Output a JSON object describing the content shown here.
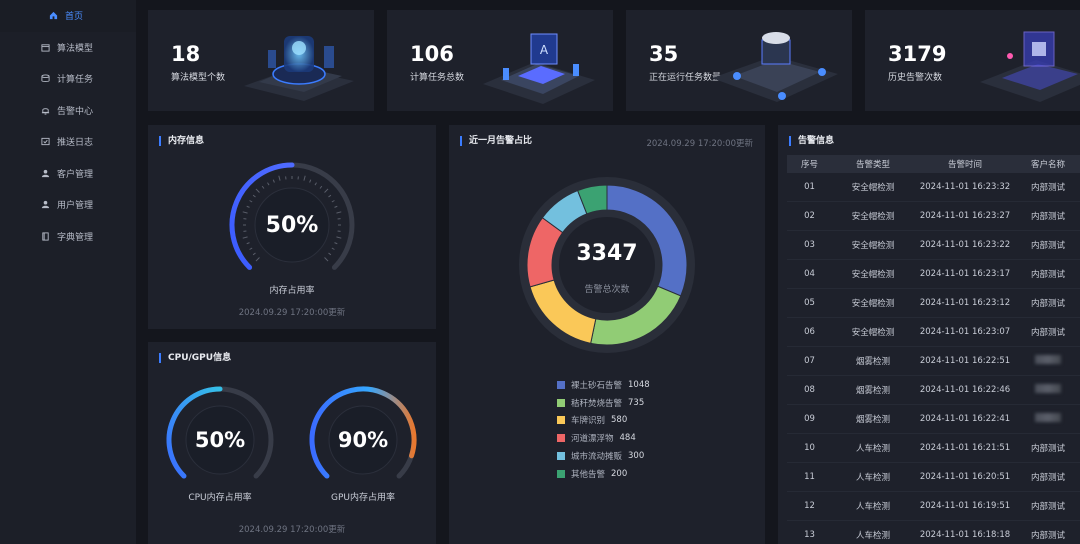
{
  "sidebar": {
    "items": [
      {
        "label": "首页",
        "icon": "home-icon",
        "active": true
      },
      {
        "label": "算法模型",
        "icon": "box-icon",
        "active": false
      },
      {
        "label": "计算任务",
        "icon": "database-icon",
        "active": false
      },
      {
        "label": "告警中心",
        "icon": "bell-icon",
        "active": false
      },
      {
        "label": "推送日志",
        "icon": "log-icon",
        "active": false
      },
      {
        "label": "客户管理",
        "icon": "customer-icon",
        "active": false
      },
      {
        "label": "用户管理",
        "icon": "user-icon",
        "active": false
      },
      {
        "label": "字典管理",
        "icon": "book-icon",
        "active": false
      }
    ]
  },
  "stats": [
    {
      "value": "18",
      "label": "算法模型个数"
    },
    {
      "value": "106",
      "label": "计算任务总数"
    },
    {
      "value": "35",
      "label": "正在运行任务数量"
    },
    {
      "value": "3179",
      "label": "历史告警次数"
    }
  ],
  "memory": {
    "title": "内存信息",
    "percent": "50%",
    "percent_value": 50,
    "caption": "内存占用率",
    "updated": "2024.09.29 17:20:00更新"
  },
  "cpugpu": {
    "title": "CPU/GPU信息",
    "cpu_percent": "50%",
    "cpu_value": 50,
    "cpu_caption": "CPU内存占用率",
    "gpu_percent": "90%",
    "gpu_value": 90,
    "gpu_caption": "GPU内存占用率",
    "updated": "2024.09.29 17:20:00更新"
  },
  "alarm_ratio": {
    "title": "近一月告警占比",
    "updated": "2024.09.29 17:20:00更新",
    "total": "3347",
    "total_label": "告警总次数"
  },
  "chart_data": {
    "type": "pie",
    "categories": [
      "裸土砂石告警",
      "秸秆焚烧告警",
      "车牌识别",
      "河道漂浮物",
      "城市流动摊贩",
      "其他告警"
    ],
    "values": [
      1048,
      735,
      580,
      484,
      300,
      200
    ],
    "colors": [
      "#5470c6",
      "#91cc75",
      "#fac858",
      "#ee6666",
      "#73c0de",
      "#3ba272"
    ],
    "title": "近一月告警占比",
    "legend": "bottom"
  },
  "alarm_info": {
    "title": "告警信息",
    "columns": [
      "序号",
      "告警类型",
      "告警时间",
      "客户名称"
    ],
    "rows": [
      {
        "no": "01",
        "type": "安全帽检测",
        "time": "2024-11-01 16:23:32",
        "customer": "内部测试"
      },
      {
        "no": "02",
        "type": "安全帽检测",
        "time": "2024-11-01 16:23:27",
        "customer": "内部测试"
      },
      {
        "no": "03",
        "type": "安全帽检测",
        "time": "2024-11-01 16:23:22",
        "customer": "内部测试"
      },
      {
        "no": "04",
        "type": "安全帽检测",
        "time": "2024-11-01 16:23:17",
        "customer": "内部测试"
      },
      {
        "no": "05",
        "type": "安全帽检测",
        "time": "2024-11-01 16:23:12",
        "customer": "内部测试"
      },
      {
        "no": "06",
        "type": "安全帽检测",
        "time": "2024-11-01 16:23:07",
        "customer": "内部测试"
      },
      {
        "no": "07",
        "type": "烟雾检测",
        "time": "2024-11-01 16:22:51",
        "customer": ""
      },
      {
        "no": "08",
        "type": "烟雾检测",
        "time": "2024-11-01 16:22:46",
        "customer": ""
      },
      {
        "no": "09",
        "type": "烟雾检测",
        "time": "2024-11-01 16:22:41",
        "customer": ""
      },
      {
        "no": "10",
        "type": "人车检测",
        "time": "2024-11-01 16:21:51",
        "customer": "内部测试"
      },
      {
        "no": "11",
        "type": "人车检测",
        "time": "2024-11-01 16:20:51",
        "customer": "内部测试"
      },
      {
        "no": "12",
        "type": "人车检测",
        "time": "2024-11-01 16:19:51",
        "customer": "内部测试"
      },
      {
        "no": "13",
        "type": "人车检测",
        "time": "2024-11-01 16:18:18",
        "customer": "内部测试"
      }
    ]
  },
  "colors": {
    "accent": "#3b7cff",
    "gauge_start": "#3a5bff",
    "gauge_mid": "#35a7ff",
    "gauge_end": "#e8782f"
  }
}
